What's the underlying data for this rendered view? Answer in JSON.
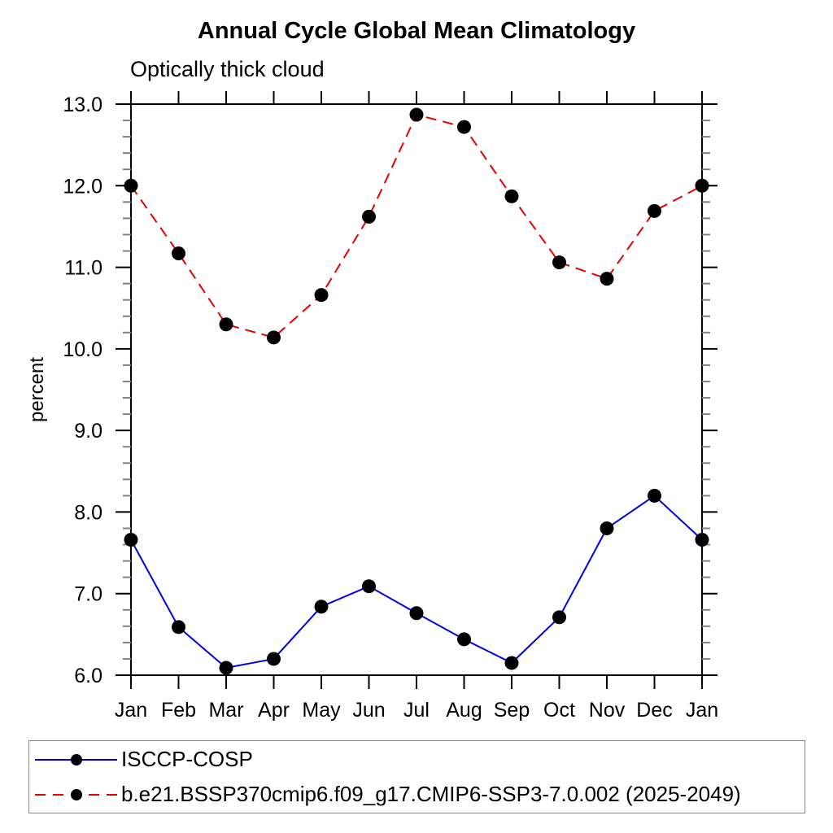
{
  "chart_data": {
    "type": "line",
    "title": "Annual Cycle Global Mean Climatology",
    "subtitle": "Optically thick cloud",
    "xlabel": "",
    "ylabel": "percent",
    "categories": [
      "Jan",
      "Feb",
      "Mar",
      "Apr",
      "May",
      "Jun",
      "Jul",
      "Aug",
      "Sep",
      "Oct",
      "Nov",
      "Dec",
      "Jan"
    ],
    "ylim": [
      6.0,
      13.0
    ],
    "ytick_major": 1.0,
    "ytick_minor": 0.2,
    "grid": false,
    "axis_color": "#000000",
    "minor_tick_color": "#808080",
    "marker_color": "#000000",
    "legend_position": "bottom-left",
    "series": [
      {
        "name": "ISCCP-COSP",
        "color": "#0000e6",
        "line_style": "solid",
        "values": [
          7.66,
          6.59,
          6.09,
          6.2,
          6.84,
          7.09,
          6.76,
          6.44,
          6.15,
          6.71,
          7.8,
          8.2,
          7.66
        ]
      },
      {
        "name": "b.e21.BSSP370cmip6.f09_g17.CMIP6-SSP3-7.0.002 (2025-2049)",
        "color": "#e60000",
        "line_style": "dashed",
        "values": [
          12.0,
          11.17,
          10.3,
          10.14,
          10.66,
          11.62,
          12.87,
          12.72,
          11.87,
          11.06,
          10.86,
          11.69,
          12.0
        ]
      }
    ]
  }
}
